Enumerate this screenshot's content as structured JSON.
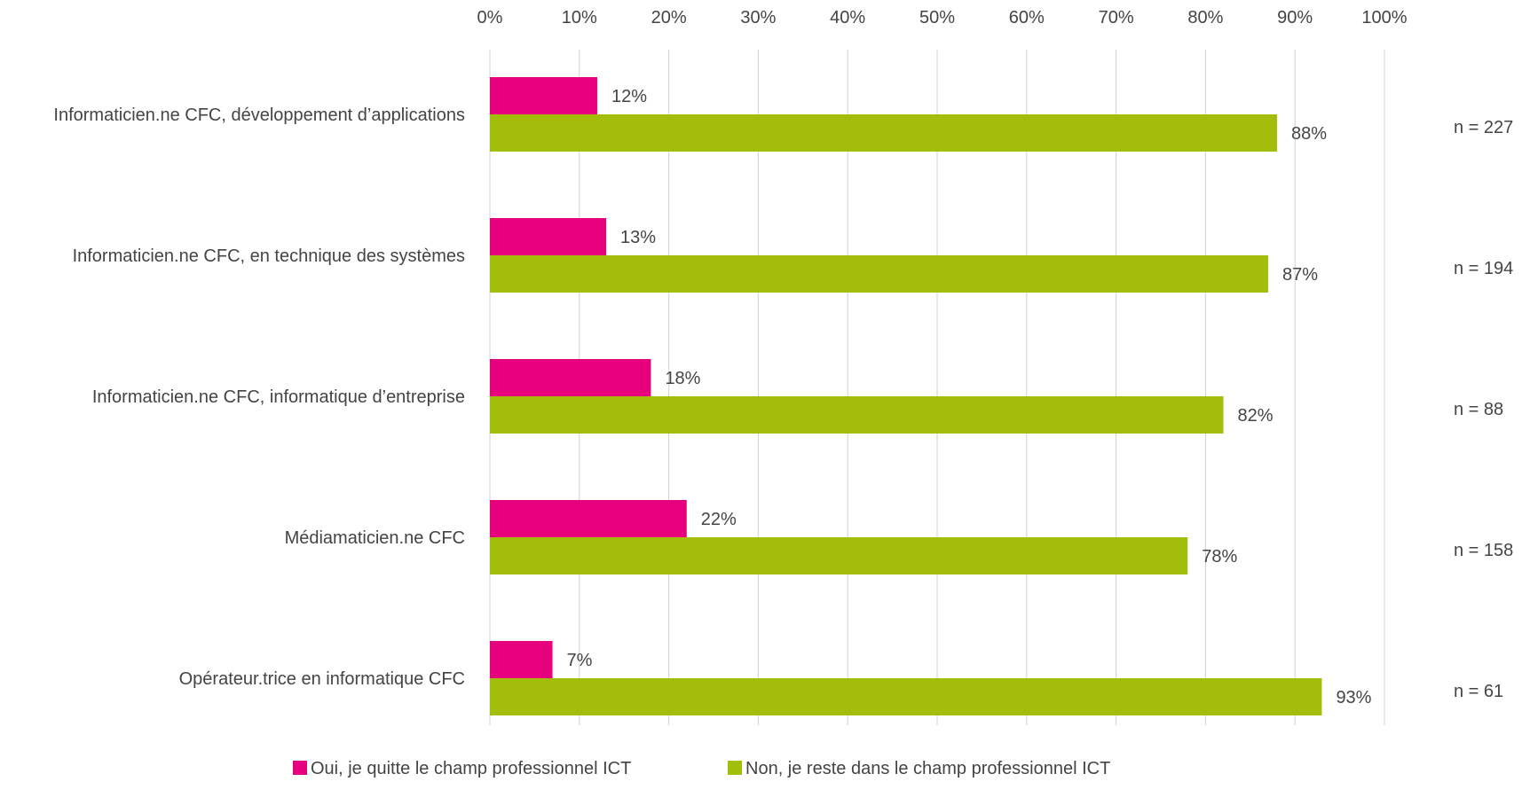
{
  "chart_data": {
    "type": "bar",
    "orientation": "horizontal",
    "categories": [
      "Informaticien.ne CFC, développement d’applications",
      "Informaticien.ne CFC, en technique des systèmes",
      "Informaticien.ne CFC, informatique d’entreprise",
      "Médiamaticien.ne CFC",
      "Opérateur.trice en informatique CFC"
    ],
    "series": [
      {
        "name": "Oui, je quitte le champ professionnel ICT",
        "color": "#e6007e",
        "values": [
          12,
          13,
          18,
          22,
          7
        ],
        "labels": [
          "12%",
          "13%",
          "18%",
          "22%",
          "7%"
        ]
      },
      {
        "name": "Non, je reste dans le champ professionnel ICT",
        "color": "#a2bd0a",
        "values": [
          88,
          87,
          82,
          78,
          93
        ],
        "labels": [
          "88%",
          "87%",
          "82%",
          "78%",
          "93%"
        ]
      }
    ],
    "n_labels": [
      "n = 227",
      "n = 194",
      "n = 88",
      "n = 158",
      "n = 61"
    ],
    "xlim": [
      0,
      100
    ],
    "x_ticks": [
      "0%",
      "10%",
      "20%",
      "30%",
      "40%",
      "50%",
      "60%",
      "70%",
      "80%",
      "90%",
      "100%"
    ],
    "x_axis_position": "top",
    "grid": "vertical",
    "legend_position": "bottom",
    "title": "",
    "xlabel": "",
    "ylabel": ""
  }
}
